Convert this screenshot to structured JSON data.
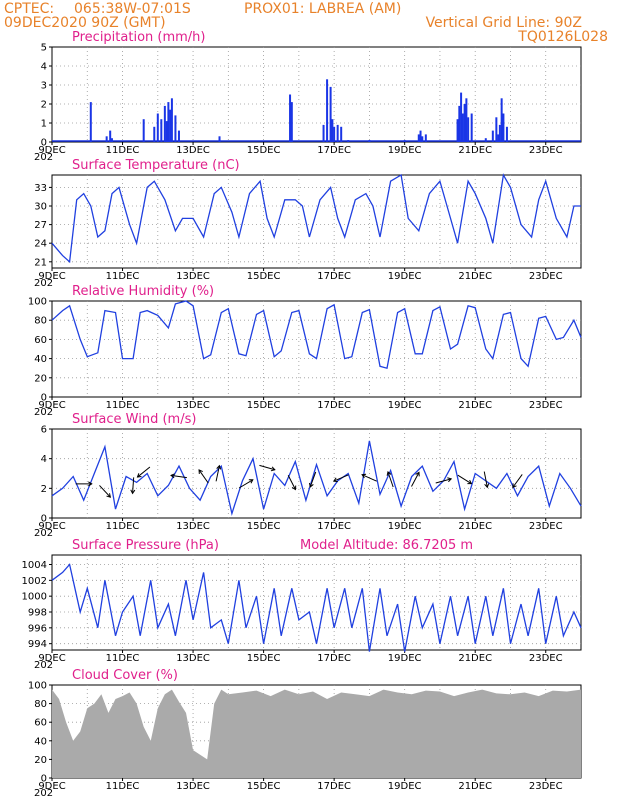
{
  "header": {
    "source": "CPTEC:",
    "coords": "065:38W-07:01S",
    "station": "PROX01: LABREA (AM)",
    "run": "09DEC2020 90Z (GMT)",
    "grid_note": "Vertical Grid Line: 90Z",
    "code": "TQ0126L028"
  },
  "x_axis": {
    "ticks": [
      "9DEC",
      "11DEC",
      "13DEC",
      "15DEC",
      "17DEC",
      "19DEC",
      "21DEC",
      "23DEC"
    ],
    "year_stub": "202"
  },
  "colors": {
    "line": "#2040e0",
    "bar": "#1a35e6",
    "cloud": "#aaaaaa",
    "title": "#e0208c",
    "header": "#e8822a",
    "grid": "#999999"
  },
  "panels": {
    "precip": {
      "title": "Precipitation (mm/h)",
      "yticks": [
        "0",
        "1",
        "2",
        "3",
        "4",
        "5"
      ]
    },
    "temp": {
      "title": "Surface Temperature (nC)",
      "yticks": [
        "21",
        "24",
        "27",
        "30",
        "33"
      ]
    },
    "rh": {
      "title": "Relative Humidity (%)",
      "yticks": [
        "0",
        "20",
        "40",
        "60",
        "80",
        "100"
      ]
    },
    "wind": {
      "title": "Surface Wind (m/s)",
      "yticks": [
        "0",
        "2",
        "4",
        "6"
      ]
    },
    "pres": {
      "title": "Surface Pressure (hPa)",
      "note": "Model Altitude: 86.7205 m",
      "yticks": [
        "994",
        "996",
        "998",
        "1000",
        "1002",
        "1004"
      ]
    },
    "cloud": {
      "title": "Cloud Cover (%)",
      "yticks": [
        "0",
        "20",
        "40",
        "60",
        "80",
        "100"
      ]
    }
  },
  "chart_data": [
    {
      "type": "bar",
      "title": "Precipitation (mm/h)",
      "ylim": [
        0,
        5
      ],
      "x_days": [
        1.1,
        1.55,
        1.65,
        1.7,
        2.6,
        2.9,
        3.0,
        3.1,
        3.2,
        3.25,
        3.3,
        3.35,
        3.4,
        3.5,
        3.6,
        4.75,
        6.75,
        6.8,
        7.7,
        7.8,
        7.9,
        7.95,
        8.0,
        8.1,
        8.2,
        8.4,
        9.0,
        10.0,
        10.4,
        10.45,
        10.5,
        10.6,
        11.5,
        11.55,
        11.6,
        11.65,
        11.7,
        11.75,
        11.8,
        11.9,
        12.3,
        12.5,
        12.6,
        12.65,
        12.7,
        12.75,
        12.8,
        12.9
      ],
      "values": [
        2.1,
        0.3,
        0.6,
        0.2,
        1.2,
        0.8,
        1.5,
        1.2,
        1.9,
        1.1,
        2.1,
        1.7,
        2.3,
        1.4,
        0.6,
        0.3,
        2.5,
        2.1,
        0.9,
        3.3,
        2.9,
        1.2,
        0.8,
        0.9,
        0.8,
        0.1,
        0.1,
        0.1,
        0.4,
        0.6,
        0.3,
        0.4,
        1.2,
        1.9,
        2.6,
        1.5,
        2.0,
        2.3,
        1.3,
        1.5,
        0.2,
        0.6,
        1.3,
        0.4,
        0.9,
        2.3,
        1.5,
        0.8
      ]
    },
    {
      "type": "line",
      "title": "Surface Temperature (nC)",
      "ylim": [
        20,
        35
      ],
      "x_days": [
        0,
        0.3,
        0.5,
        0.7,
        0.9,
        1.1,
        1.3,
        1.5,
        1.7,
        1.9,
        2.2,
        2.4,
        2.7,
        2.9,
        3.2,
        3.5,
        3.7,
        4.0,
        4.3,
        4.6,
        4.8,
        5.1,
        5.3,
        5.6,
        5.9,
        6.1,
        6.3,
        6.6,
        6.9,
        7.1,
        7.3,
        7.6,
        7.9,
        8.1,
        8.3,
        8.6,
        8.9,
        9.1,
        9.3,
        9.6,
        9.9,
        10.1,
        10.4,
        10.7,
        11.0,
        11.2,
        11.5,
        11.8,
        12.0,
        12.3,
        12.5,
        12.8,
        13.0,
        13.3,
        13.6,
        13.8,
        14.0,
        14.3,
        14.6,
        14.8,
        15.0
      ],
      "values": [
        24,
        22,
        21,
        31,
        32,
        30,
        25,
        26,
        32,
        33,
        27,
        24,
        33,
        34,
        31,
        26,
        28,
        28,
        25,
        32,
        33,
        29,
        25,
        32,
        34,
        28,
        25,
        31,
        31,
        30,
        25,
        31,
        33,
        28,
        25,
        31,
        32,
        30,
        25,
        34,
        35,
        28,
        26,
        32,
        34,
        30,
        24,
        34,
        32,
        28,
        24,
        35,
        33,
        27,
        25,
        31,
        34,
        28,
        25,
        30,
        30
      ]
    },
    {
      "type": "line",
      "title": "Relative Humidity (%)",
      "ylim": [
        0,
        100
      ],
      "x_days": [
        0,
        0.3,
        0.5,
        0.8,
        1.0,
        1.3,
        1.5,
        1.8,
        2.0,
        2.3,
        2.5,
        2.7,
        3.0,
        3.3,
        3.5,
        3.8,
        4.0,
        4.3,
        4.5,
        4.8,
        5.0,
        5.3,
        5.5,
        5.8,
        6.0,
        6.3,
        6.5,
        6.8,
        7.0,
        7.3,
        7.5,
        7.8,
        8.0,
        8.3,
        8.5,
        8.8,
        9.0,
        9.3,
        9.5,
        9.8,
        10.0,
        10.3,
        10.5,
        10.8,
        11.0,
        11.3,
        11.5,
        11.8,
        12.0,
        12.3,
        12.5,
        12.8,
        13.0,
        13.3,
        13.5,
        13.8,
        14.0,
        14.3,
        14.5,
        14.8,
        15.0
      ],
      "values": [
        80,
        90,
        95,
        60,
        42,
        46,
        90,
        88,
        40,
        40,
        88,
        90,
        85,
        72,
        97,
        100,
        95,
        40,
        44,
        88,
        92,
        45,
        43,
        86,
        90,
        42,
        48,
        88,
        90,
        45,
        40,
        92,
        96,
        40,
        42,
        88,
        91,
        32,
        30,
        88,
        92,
        45,
        45,
        90,
        94,
        50,
        55,
        95,
        93,
        50,
        40,
        86,
        88,
        40,
        32,
        82,
        84,
        60,
        62,
        80,
        62
      ]
    },
    {
      "type": "line",
      "title": "Surface Wind (m/s)",
      "ylim": [
        0,
        6
      ],
      "x_days": [
        0,
        0.3,
        0.6,
        0.9,
        1.2,
        1.5,
        1.8,
        2.1,
        2.4,
        2.7,
        3.0,
        3.3,
        3.6,
        3.9,
        4.2,
        4.5,
        4.8,
        5.1,
        5.4,
        5.7,
        6.0,
        6.3,
        6.6,
        6.9,
        7.2,
        7.5,
        7.8,
        8.1,
        8.4,
        8.7,
        9.0,
        9.3,
        9.6,
        9.9,
        10.2,
        10.5,
        10.8,
        11.1,
        11.4,
        11.7,
        12.0,
        12.3,
        12.6,
        12.9,
        13.2,
        13.5,
        13.8,
        14.1,
        14.4,
        14.7,
        15.0
      ],
      "values": [
        1.5,
        2.0,
        2.8,
        1.2,
        3.0,
        4.8,
        0.6,
        2.8,
        2.4,
        3.0,
        1.5,
        2.2,
        3.5,
        2.0,
        1.2,
        2.8,
        3.5,
        0.3,
        2.5,
        4.0,
        0.6,
        3.0,
        2.2,
        3.8,
        1.2,
        3.6,
        1.5,
        2.5,
        3.0,
        1.0,
        5.2,
        1.6,
        3.2,
        0.8,
        2.8,
        3.5,
        1.8,
        2.5,
        3.8,
        0.6,
        3.0,
        2.5,
        2.0,
        3.0,
        1.5,
        2.8,
        3.5,
        0.8,
        3.0,
        2.0,
        0.8
      ]
    },
    {
      "type": "line",
      "title": "Surface Pressure (hPa)",
      "ylim": [
        993.2,
        1005.2
      ],
      "x_days": [
        0,
        0.3,
        0.5,
        0.8,
        1.0,
        1.3,
        1.5,
        1.8,
        2.0,
        2.3,
        2.5,
        2.8,
        3.0,
        3.3,
        3.5,
        3.8,
        4.0,
        4.3,
        4.5,
        4.8,
        5.0,
        5.3,
        5.5,
        5.8,
        6.0,
        6.3,
        6.5,
        6.8,
        7.0,
        7.3,
        7.5,
        7.8,
        8.0,
        8.3,
        8.5,
        8.8,
        9.0,
        9.3,
        9.5,
        9.8,
        10.0,
        10.3,
        10.5,
        10.8,
        11.0,
        11.3,
        11.5,
        11.8,
        12.0,
        12.3,
        12.5,
        12.8,
        13.0,
        13.3,
        13.5,
        13.8,
        14.0,
        14.3,
        14.5,
        14.8,
        15.0
      ],
      "values": [
        1002,
        1003,
        1004,
        998,
        1001,
        996,
        1002,
        995,
        998,
        1000,
        995,
        1002,
        996,
        999,
        995,
        1002,
        997,
        1003,
        996,
        997,
        994,
        1002,
        996,
        1000,
        994,
        1001,
        995,
        1001,
        997,
        998,
        994,
        1001,
        996,
        1001,
        996,
        1001,
        993,
        1001,
        995,
        999,
        993,
        1000,
        996,
        999,
        994,
        1000,
        995,
        1000,
        994,
        1000,
        995,
        1001,
        994,
        999,
        995,
        1001,
        994,
        1000,
        995,
        998,
        996
      ]
    },
    {
      "type": "area",
      "title": "Cloud Cover (%)",
      "ylim": [
        0,
        100
      ],
      "x_days": [
        0,
        0.2,
        0.4,
        0.6,
        0.8,
        1.0,
        1.2,
        1.4,
        1.6,
        1.8,
        2.0,
        2.2,
        2.4,
        2.6,
        2.8,
        3.0,
        3.2,
        3.4,
        3.6,
        3.8,
        4.0,
        4.2,
        4.4,
        4.6,
        4.8,
        5.0,
        5.4,
        5.8,
        6.2,
        6.6,
        7.0,
        7.4,
        7.8,
        8.2,
        8.6,
        9.0,
        9.4,
        9.8,
        10.2,
        10.6,
        11.0,
        11.4,
        11.8,
        12.2,
        12.6,
        13.0,
        13.4,
        13.8,
        14.2,
        14.6,
        15.0
      ],
      "values": [
        95,
        85,
        60,
        40,
        50,
        75,
        80,
        90,
        70,
        85,
        88,
        92,
        80,
        55,
        40,
        75,
        90,
        95,
        82,
        70,
        30,
        25,
        20,
        80,
        95,
        90,
        92,
        94,
        88,
        95,
        90,
        93,
        85,
        92,
        90,
        88,
        95,
        92,
        90,
        94,
        93,
        88,
        92,
        95,
        91,
        90,
        92,
        88,
        94,
        93,
        95
      ]
    }
  ]
}
